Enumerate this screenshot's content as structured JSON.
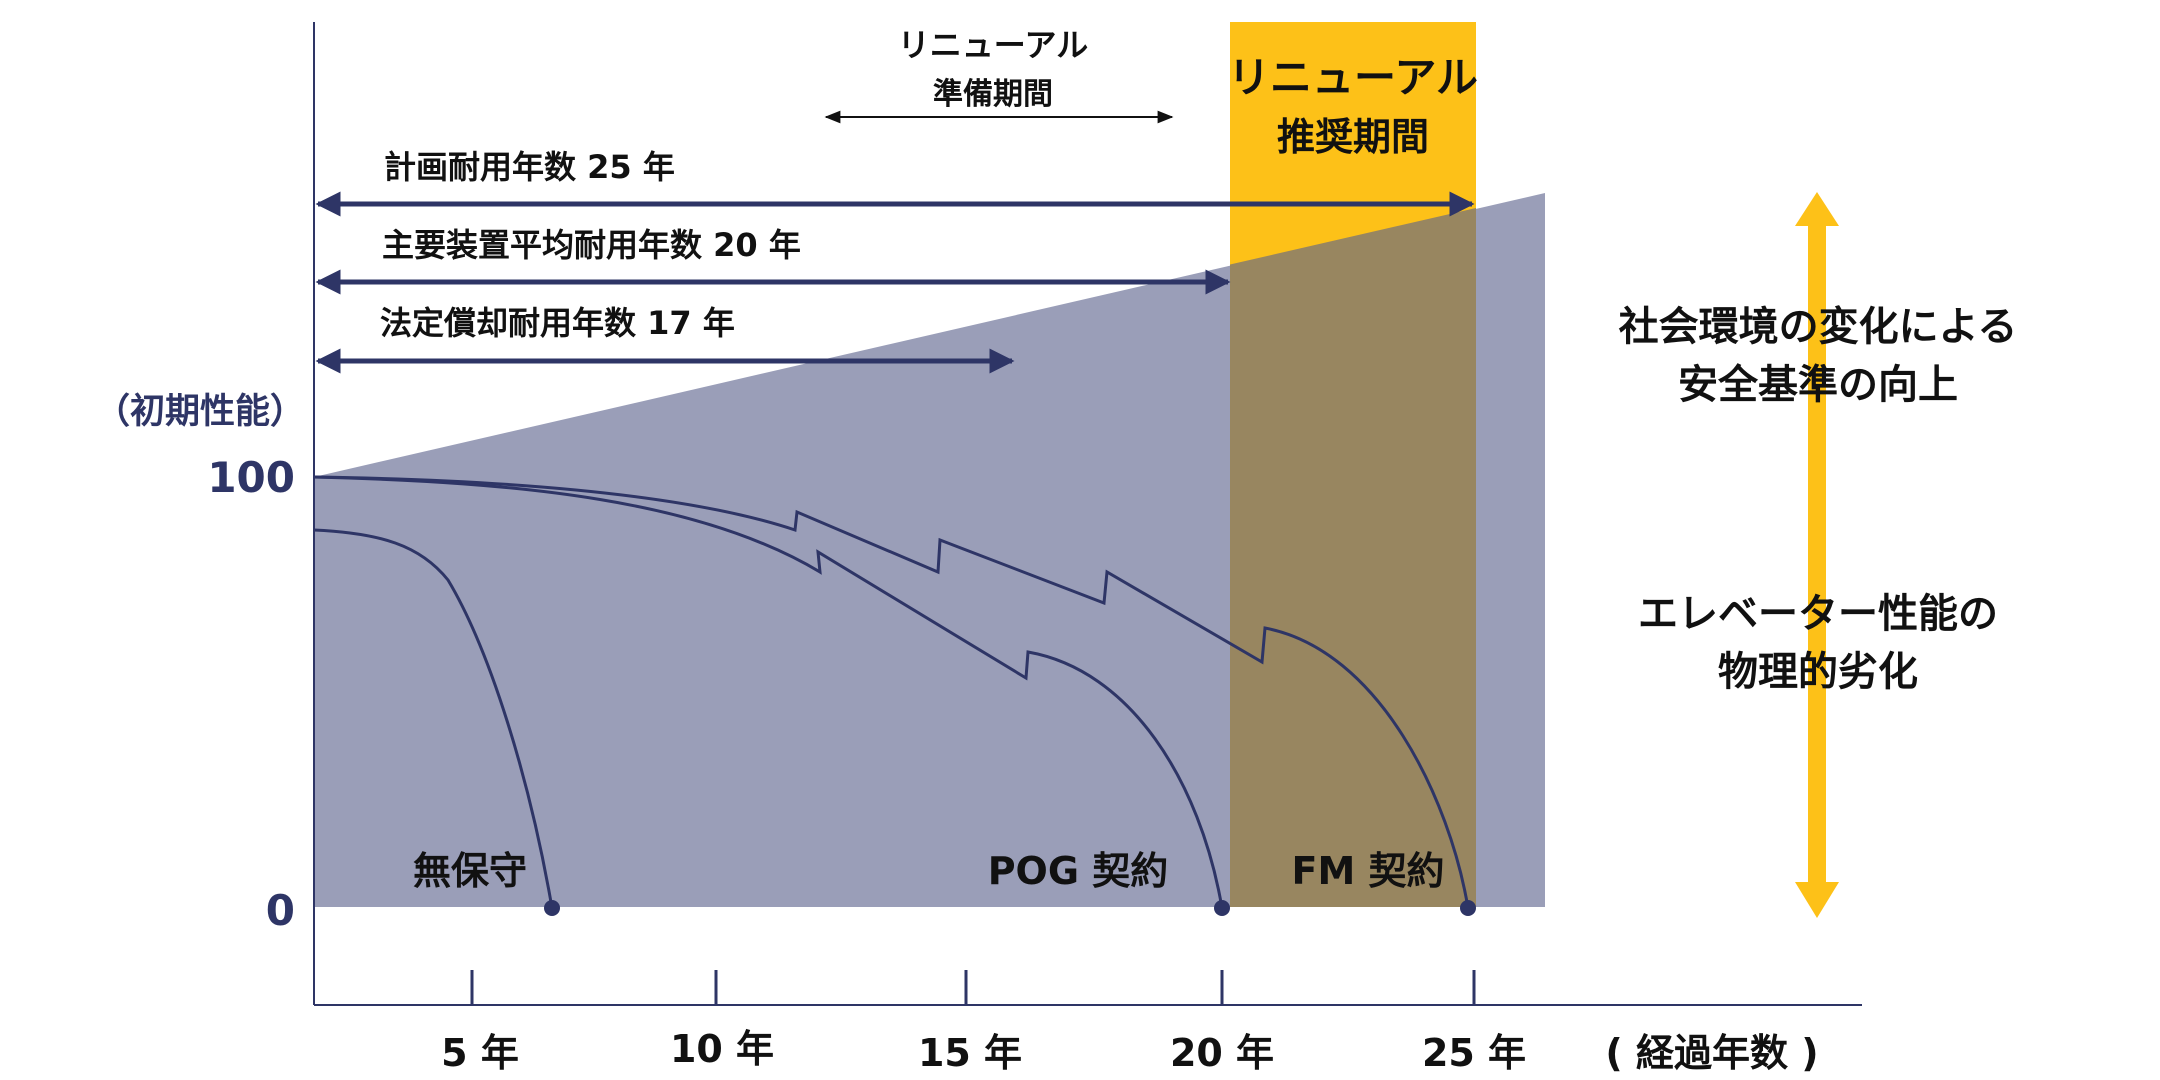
{
  "axis": {
    "y_caption": "（初期性能）",
    "y_ticks": [
      "100",
      "0"
    ],
    "x_ticks": [
      "5 年",
      "10 年",
      "15 年",
      "20 年",
      "25 年"
    ],
    "x_caption": "( 経過年数 )"
  },
  "renewal": {
    "prep_line1": "リニューアル",
    "prep_line2": "準備期間",
    "rec_line1": "リニューアル",
    "rec_line2": "推奨期間"
  },
  "lifespans": [
    {
      "label": "計画耐用年数 25 年",
      "years": 25
    },
    {
      "label": "主要装置平均耐用年数 20 年",
      "years": 20
    },
    {
      "label": "法定償却耐用年数 17 年",
      "years": 17
    }
  ],
  "curves": {
    "none": "無保守",
    "pog": "POG 契約",
    "fm": "FM 契約"
  },
  "side": {
    "safety_line1": "社会環境の変化による",
    "safety_line2": "安全基準の向上",
    "physical_line1": "エレベーター性能の",
    "physical_line2": "物理的劣化"
  },
  "colors": {
    "navy": "#2e3566",
    "area": "#9a9eb8",
    "renewal_band": "#fdc118",
    "overlap": "#988660"
  }
}
